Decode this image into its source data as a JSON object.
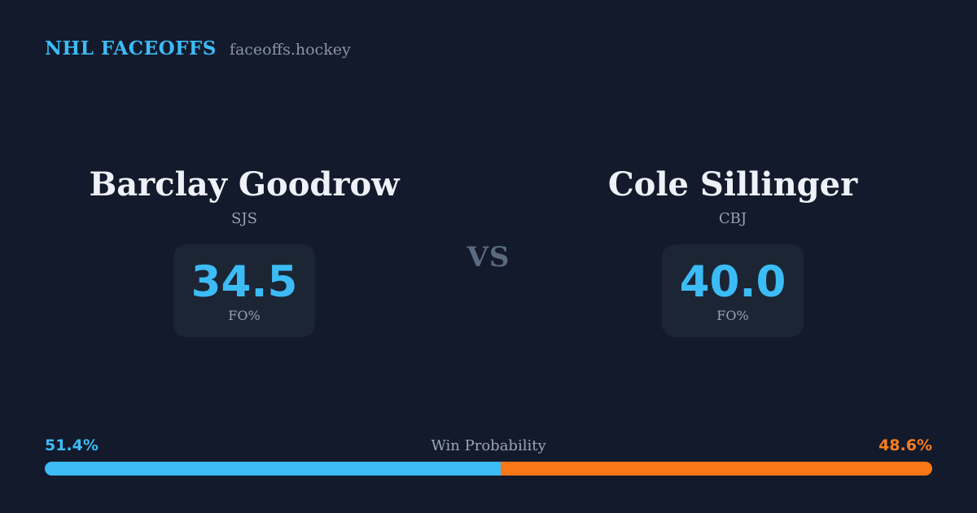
{
  "header": {
    "brand": "NHL FACEOFFS",
    "domain": "faceoffs.hockey"
  },
  "matchup": {
    "vs_label": "VS",
    "players": [
      {
        "name": "Barclay Goodrow",
        "team": "SJS",
        "stat_value": "34.5",
        "stat_label": "FO%"
      },
      {
        "name": "Cole Sillinger",
        "team": "CBJ",
        "stat_value": "40.0",
        "stat_label": "FO%"
      }
    ]
  },
  "win_probability": {
    "title": "Win Probability",
    "left_label": "51.4%",
    "right_label": "48.6%",
    "left_value": 51.4,
    "right_value": 48.6
  },
  "chart_data": {
    "type": "bar",
    "title": "Win Probability",
    "categories": [
      "Barclay Goodrow (SJS)",
      "Cole Sillinger (CBJ)"
    ],
    "values": [
      51.4,
      48.6
    ],
    "xlabel": "",
    "ylabel": "Win Probability (%)",
    "ylim": [
      0,
      100
    ],
    "legend_position": "none",
    "grid": false
  },
  "colors": {
    "background": "#121a2b",
    "card": "#1c2533",
    "accent_blue": "#3cbcf7",
    "accent_orange": "#f97716",
    "text_primary": "#eef2f8",
    "text_muted": "#96a1b3"
  }
}
